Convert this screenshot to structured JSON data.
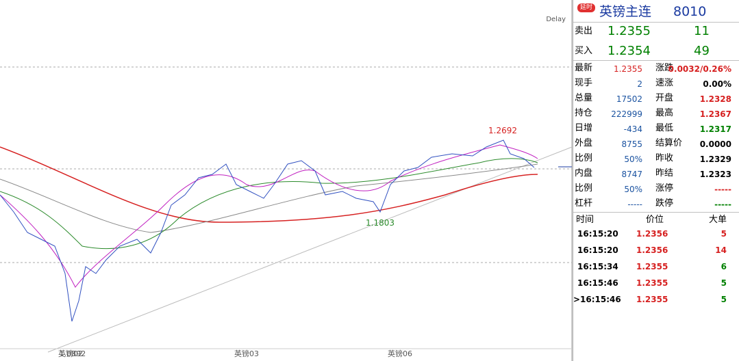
{
  "chart": {
    "delay": "Delay",
    "high_label": "1.2692",
    "low_label": "1.1803",
    "start_label": "1.0892",
    "axis_labels": [
      "英镑02",
      "英镑03",
      "英镑06"
    ]
  },
  "header": {
    "badge": "延时",
    "title": "英镑主连",
    "code": "8010"
  },
  "quote": {
    "rows": [
      {
        "label": "卖出",
        "price": "1.2355",
        "volume": "11"
      },
      {
        "label": "买入",
        "price": "1.2354",
        "volume": "49"
      }
    ]
  },
  "stats": {
    "rows": [
      [
        "最新",
        "1.2355",
        "涨跌",
        "0.0032/0.26%"
      ],
      [
        "现手",
        "2",
        "速涨",
        "0.00%"
      ],
      [
        "总量",
        "17502",
        "开盘",
        "1.2328"
      ],
      [
        "持仓",
        "222999",
        "最高",
        "1.2367"
      ],
      [
        "日增",
        "-434",
        "最低",
        "1.2317"
      ],
      [
        "外盘",
        "8755",
        "结算价",
        "0.0000"
      ],
      [
        "比例",
        "50%",
        "昨收",
        "1.2329"
      ],
      [
        "内盘",
        "8747",
        "昨结",
        "1.2323"
      ],
      [
        "比例",
        "50%",
        "涨停",
        "-----"
      ],
      [
        "杠杆",
        "-----",
        "跌停",
        "-----"
      ]
    ]
  },
  "trades": {
    "headers": [
      "时间",
      "价位",
      "大单"
    ],
    "rows": [
      [
        "16:15:20",
        "1.2356",
        "5"
      ],
      [
        "16:15:20",
        "1.2356",
        "14"
      ],
      [
        "16:15:34",
        "1.2355",
        "6"
      ],
      [
        "16:15:46",
        "1.2355",
        "5"
      ],
      [
        ">16:15:46",
        "1.2355",
        "5"
      ]
    ]
  }
}
